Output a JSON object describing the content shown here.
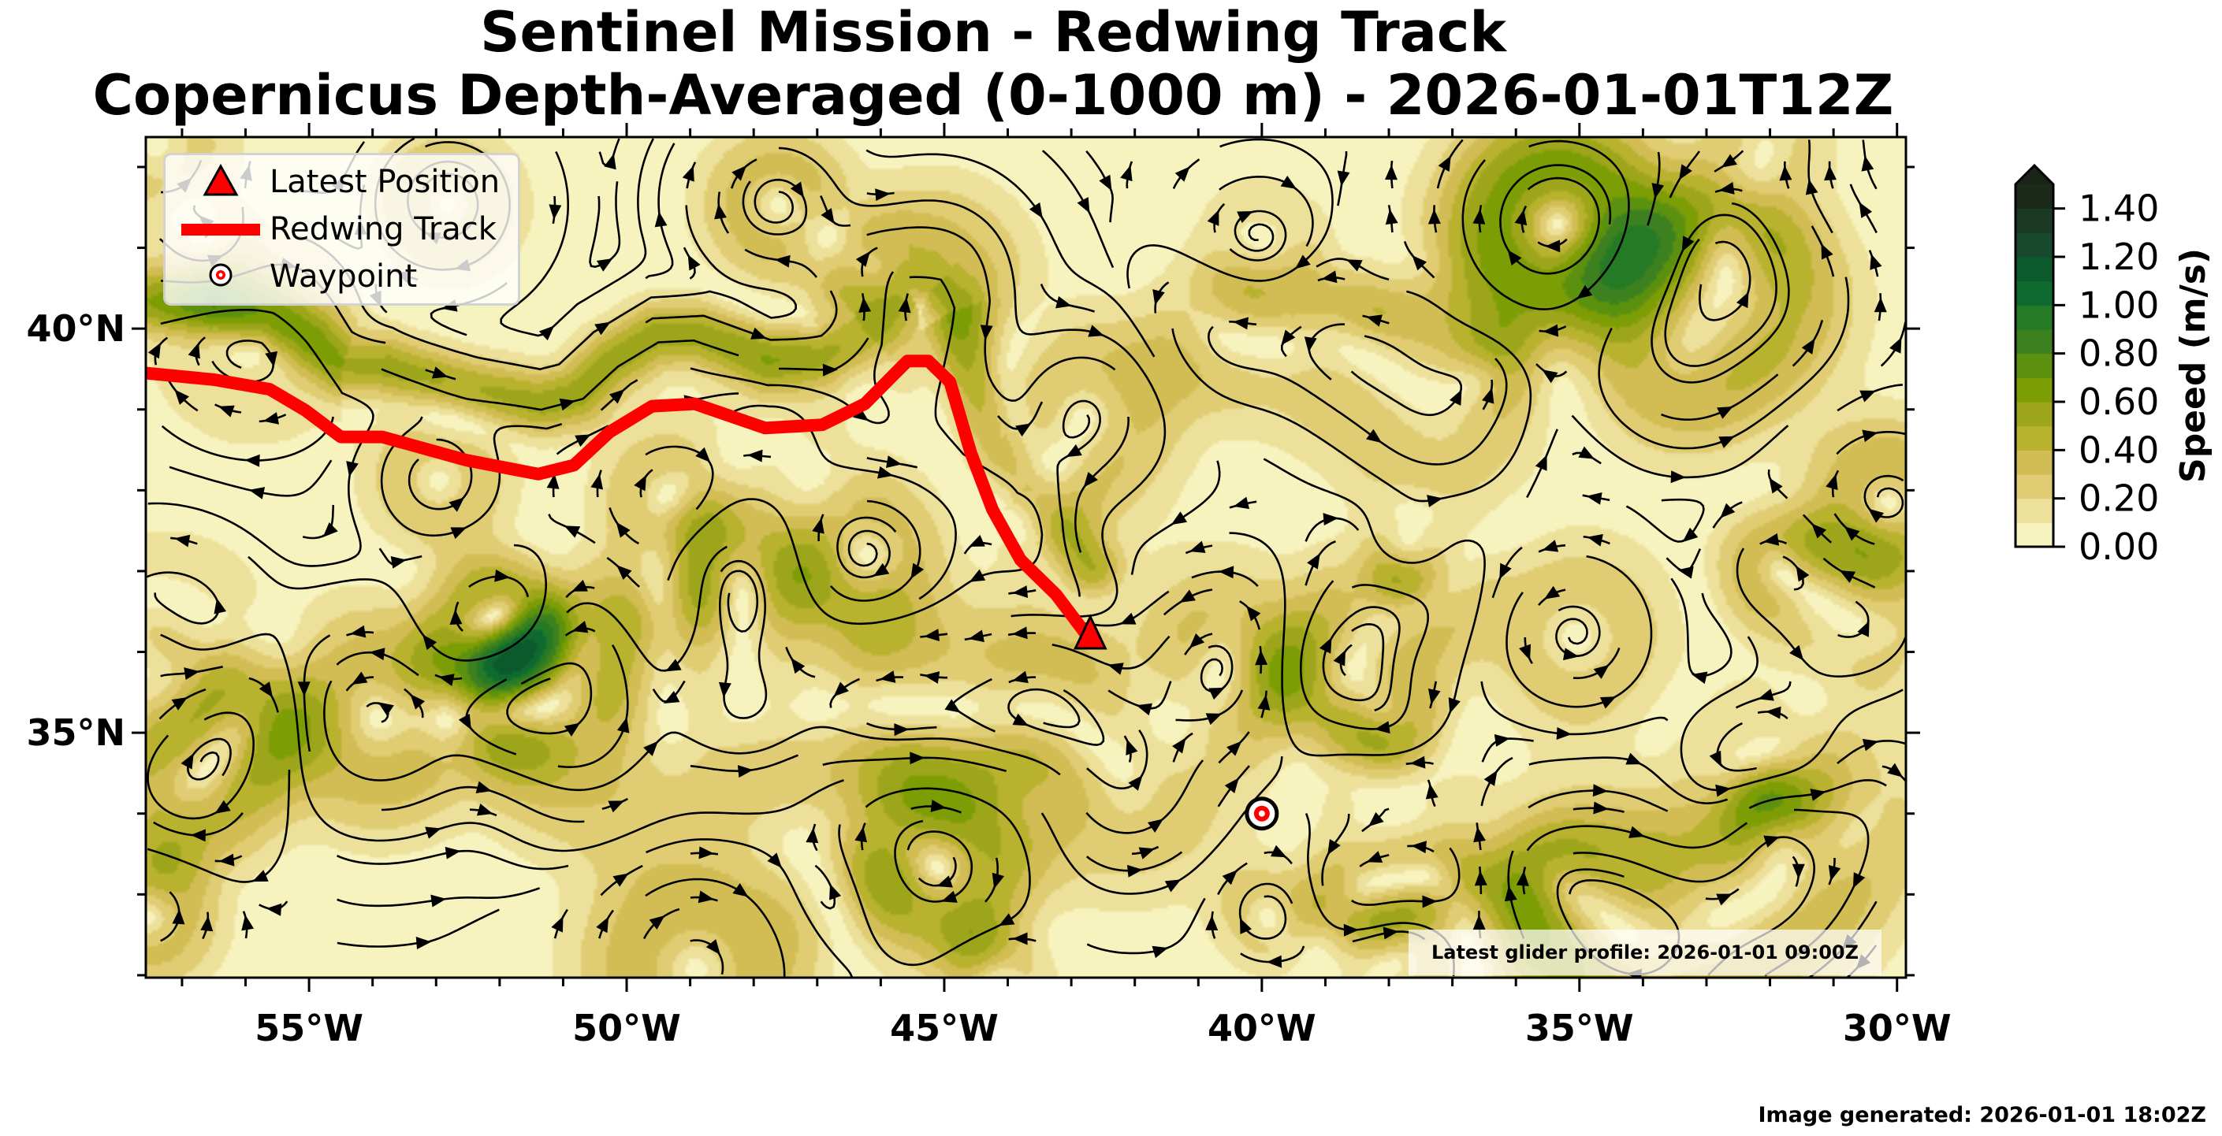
{
  "chart_data": {
    "type": "filled-contour-streamlines-map",
    "title": "Sentinel Mission - Redwing Track",
    "subtitle": "Copernicus Depth-Averaged (0-1000 m) - 2026-01-01T12Z",
    "xlim": [
      -57.57,
      -29.86
    ],
    "ylim": [
      31.97,
      42.37
    ],
    "x_ticks": [
      {
        "value": -55,
        "label": "55°W"
      },
      {
        "value": -50,
        "label": "50°W"
      },
      {
        "value": -45,
        "label": "45°W"
      },
      {
        "value": -40,
        "label": "40°W"
      },
      {
        "value": -35,
        "label": "35°W"
      },
      {
        "value": -30,
        "label": "30°W"
      }
    ],
    "y_ticks": [
      {
        "value": 35,
        "label": "35°N"
      },
      {
        "value": 40,
        "label": "40°N"
      }
    ],
    "colorbar": {
      "label": "Speed (m/s)",
      "levels": [
        0,
        0.1,
        0.2,
        0.3,
        0.4,
        0.5,
        0.6,
        0.7,
        0.8,
        0.9,
        1.0,
        1.1,
        1.2,
        1.3,
        1.4,
        1.5
      ],
      "colors": [
        "#f7f3bf",
        "#ede09a",
        "#e0cd73",
        "#d2bd55",
        "#b8b22f",
        "#9da61a",
        "#7d9d05",
        "#5c9110",
        "#3d801f",
        "#257a26",
        "#0f6a2f",
        "#0c5a2b",
        "#174a2c",
        "#1b3a24",
        "#1c2a1a"
      ],
      "extend_color": "#1b2418",
      "ticks": [
        {
          "value": 0,
          "label": "0.00"
        },
        {
          "value": 0.2,
          "label": "0.20"
        },
        {
          "value": 0.4,
          "label": "0.40"
        },
        {
          "value": 0.6,
          "label": "0.60"
        },
        {
          "value": 0.8,
          "label": "0.80"
        },
        {
          "value": 1.0,
          "label": "1.00"
        },
        {
          "value": 1.2,
          "label": "1.20"
        },
        {
          "value": 1.4,
          "label": "1.40"
        }
      ]
    },
    "track": {
      "name": "Redwing Track",
      "color": "#ff0000",
      "lon": [
        -57.57,
        -56.51,
        -55.62,
        -55.06,
        -54.5,
        -53.85,
        -52.51,
        -51.39,
        -50.83,
        -50.27,
        -49.6,
        -48.93,
        -47.82,
        -46.92,
        -46.25,
        -45.58,
        -45.25,
        -44.91,
        -44.58,
        -44.24,
        -43.8,
        -43.24,
        -42.73
      ],
      "lat": [
        39.45,
        39.37,
        39.25,
        38.99,
        38.66,
        38.66,
        38.37,
        38.2,
        38.31,
        38.72,
        39.04,
        39.07,
        38.77,
        38.81,
        39.07,
        39.6,
        39.6,
        39.34,
        38.46,
        37.76,
        37.14,
        36.71,
        36.18
      ]
    },
    "latest_position": {
      "lon": -42.7,
      "lat": 36.2
    },
    "waypoint": {
      "lon": -40.0,
      "lat": 34.0
    },
    "legend": {
      "placement": "top-left",
      "entries": [
        "Latest Position",
        "Redwing Track",
        "Waypoint"
      ]
    },
    "annotation": "Latest glider profile: 2026-01-01 09:00Z",
    "footer": "Image generated: 2026-01-01 18:02Z"
  }
}
